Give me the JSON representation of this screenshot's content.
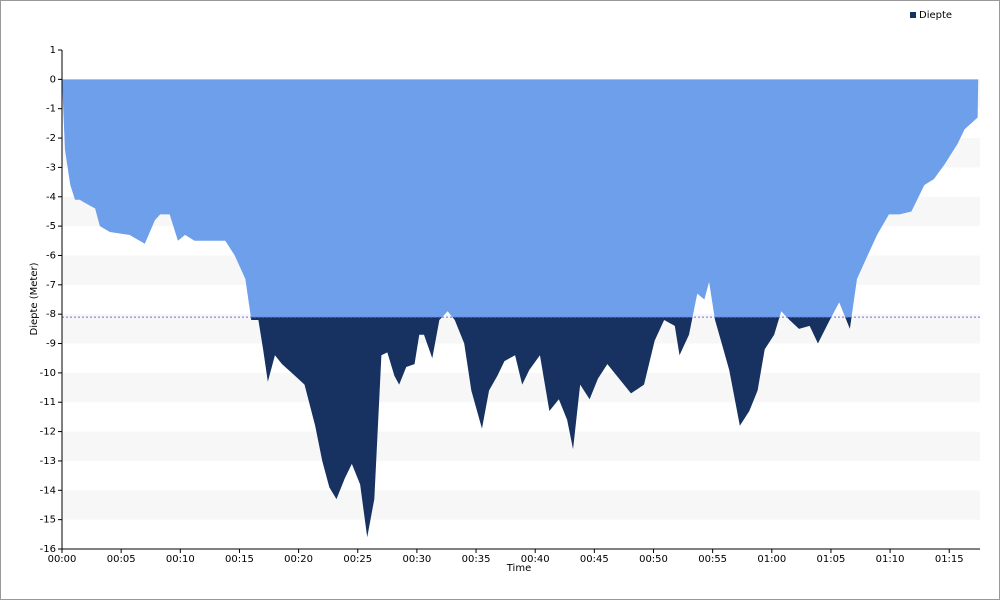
{
  "chart_data": {
    "type": "area",
    "y_label": "Diepte (Meter)",
    "x_label": "Time",
    "x": [
      0,
      0.25,
      0.7,
      1.1,
      1.5,
      1.9,
      2.8,
      3.2,
      4.05,
      5.7,
      7.0,
      7.85,
      8.3,
      9.1,
      9.8,
      10.4,
      11.2,
      12.5,
      13.8,
      14.6,
      15.5,
      16.0,
      16.6,
      17.0,
      17.4,
      18.0,
      18.6,
      19.7,
      20.5,
      21.4,
      22.0,
      22.6,
      23.2,
      23.9,
      24.5,
      25.2,
      25.8,
      26.4,
      27.0,
      27.5,
      28.1,
      28.5,
      29.1,
      29.8,
      30.2,
      30.6,
      31.3,
      31.9,
      32.6,
      33.2,
      34.0,
      34.6,
      35.5,
      36.1,
      36.8,
      37.4,
      38.3,
      38.9,
      39.5,
      40.4,
      41.2,
      42.0,
      42.7,
      43.2,
      43.8,
      44.6,
      45.3,
      46.1,
      47.1,
      48.1,
      49.2,
      50.1,
      50.9,
      51.8,
      52.2,
      53.0,
      53.7,
      54.3,
      54.7,
      55.2,
      55.7,
      56.4,
      57.3,
      58.1,
      58.8,
      59.4,
      60.2,
      60.8,
      61.5,
      62.3,
      63.2,
      63.9,
      64.9,
      65.7,
      66.6,
      67.2,
      68.1,
      68.9,
      69.9,
      70.8,
      71.8,
      72.9,
      73.7,
      74.6,
      75.7,
      76.3,
      77.4,
      77.45
    ],
    "series": [
      {
        "name": "Diepte",
        "color": "#6e9fea",
        "color_below": "#173260",
        "values": [
          0,
          -2.4,
          -3.6,
          -4.1,
          -4.1,
          -4.2,
          -4.4,
          -5.0,
          -5.2,
          -5.3,
          -5.6,
          -4.8,
          -4.6,
          -4.6,
          -5.5,
          -5.3,
          -5.5,
          -5.5,
          -5.5,
          -6.0,
          -6.8,
          -8.2,
          -8.2,
          -9.2,
          -10.3,
          -9.4,
          -9.7,
          -10.1,
          -10.4,
          -11.8,
          -13.0,
          -13.9,
          -14.3,
          -13.6,
          -13.1,
          -13.8,
          -15.6,
          -14.3,
          -9.4,
          -9.3,
          -10.1,
          -10.4,
          -9.8,
          -9.7,
          -8.7,
          -8.7,
          -9.5,
          -8.2,
          -7.9,
          -8.2,
          -9.0,
          -10.6,
          -11.9,
          -10.6,
          -10.1,
          -9.6,
          -9.4,
          -10.4,
          -9.9,
          -9.4,
          -11.3,
          -10.9,
          -11.6,
          -12.6,
          -10.4,
          -10.9,
          -10.2,
          -9.7,
          -10.2,
          -10.7,
          -10.4,
          -8.9,
          -8.2,
          -8.4,
          -9.4,
          -8.7,
          -7.3,
          -7.5,
          -6.9,
          -8.2,
          -8.9,
          -9.9,
          -11.8,
          -11.3,
          -10.6,
          -9.2,
          -8.7,
          -7.9,
          -8.2,
          -8.5,
          -8.4,
          -9.0,
          -8.2,
          -7.6,
          -8.5,
          -6.8,
          -6.0,
          -5.3,
          -4.6,
          -4.6,
          -4.5,
          -3.6,
          -3.4,
          -2.9,
          -2.2,
          -1.7,
          -1.3,
          0
        ]
      }
    ],
    "reference_line": -8.1,
    "xlim": [
      0,
      77.6
    ],
    "xticks": [
      {
        "value": 0,
        "label": "00:00"
      },
      {
        "value": 5,
        "label": "00:05"
      },
      {
        "value": 10,
        "label": "00:10"
      },
      {
        "value": 15,
        "label": "00:15"
      },
      {
        "value": 20,
        "label": "00:20"
      },
      {
        "value": 25,
        "label": "00:25"
      },
      {
        "value": 30,
        "label": "00:30"
      },
      {
        "value": 35,
        "label": "00:35"
      },
      {
        "value": 40,
        "label": "00:40"
      },
      {
        "value": 45,
        "label": "00:45"
      },
      {
        "value": 50,
        "label": "00:50"
      },
      {
        "value": 55,
        "label": "00:55"
      },
      {
        "value": 60,
        "label": "01:00"
      },
      {
        "value": 65,
        "label": "01:05"
      },
      {
        "value": 70,
        "label": "01:10"
      },
      {
        "value": 75,
        "label": "01:15"
      }
    ],
    "ylim": [
      -16,
      1
    ],
    "yticks": [
      1,
      0,
      -1,
      -2,
      -3,
      -4,
      -5,
      -6,
      -7,
      -8,
      -9,
      -10,
      -11,
      -12,
      -13,
      -14,
      -15,
      -16
    ],
    "grid": "bands",
    "legend": "top-right"
  }
}
